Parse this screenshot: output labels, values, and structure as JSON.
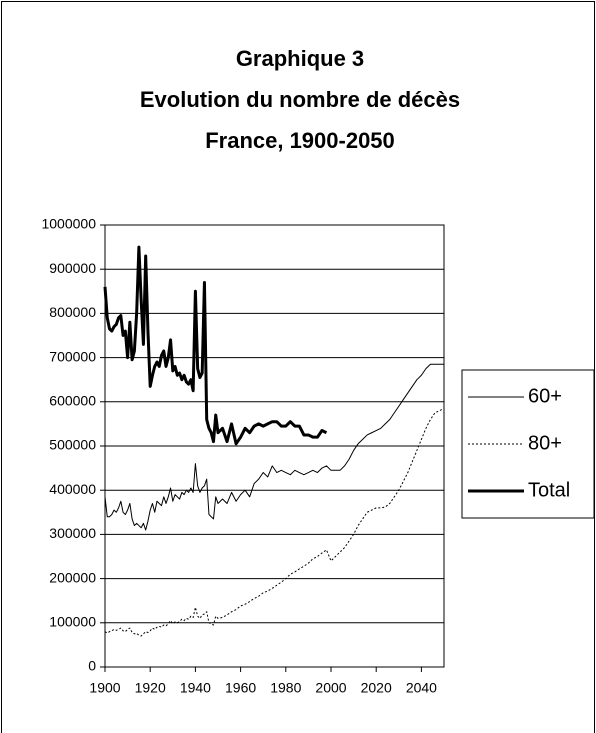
{
  "chart_data": {
    "type": "line",
    "title": [
      "Graphique 3",
      "Evolution du nombre de décès",
      "France, 1900-2050"
    ],
    "x": [
      1900,
      1901,
      1902,
      1903,
      1904,
      1905,
      1906,
      1907,
      1908,
      1909,
      1910,
      1911,
      1912,
      1913,
      1914,
      1915,
      1916,
      1917,
      1918,
      1919,
      1920,
      1921,
      1922,
      1923,
      1924,
      1925,
      1926,
      1927,
      1928,
      1929,
      1930,
      1931,
      1932,
      1933,
      1934,
      1935,
      1936,
      1937,
      1938,
      1939,
      1940,
      1941,
      1942,
      1943,
      1944,
      1945,
      1946,
      1947,
      1948,
      1949,
      1950,
      1952,
      1954,
      1956,
      1958,
      1960,
      1962,
      1964,
      1966,
      1968,
      1970,
      1972,
      1974,
      1976,
      1978,
      1980,
      1982,
      1984,
      1986,
      1988,
      1990,
      1992,
      1994,
      1996,
      1998,
      2000,
      2002,
      2004,
      2006,
      2008,
      2010,
      2012,
      2014,
      2016,
      2018,
      2020,
      2022,
      2024,
      2026,
      2028,
      2030,
      2032,
      2034,
      2036,
      2038,
      2040,
      2042,
      2044,
      2046,
      2048,
      2050
    ],
    "series": [
      {
        "name": "60+",
        "color": "#000000",
        "line_style": "solid",
        "line_width": 1,
        "values": [
          385000,
          340000,
          340000,
          345000,
          355000,
          350000,
          360000,
          375000,
          350000,
          345000,
          355000,
          370000,
          335000,
          320000,
          325000,
          320000,
          315000,
          325000,
          310000,
          330000,
          355000,
          370000,
          350000,
          375000,
          370000,
          365000,
          385000,
          370000,
          385000,
          405000,
          375000,
          390000,
          385000,
          380000,
          395000,
          390000,
          400000,
          395000,
          405000,
          395000,
          460000,
          410000,
          395000,
          405000,
          410000,
          425000,
          345000,
          340000,
          335000,
          385000,
          370000,
          380000,
          370000,
          395000,
          375000,
          390000,
          400000,
          385000,
          415000,
          425000,
          440000,
          430000,
          455000,
          440000,
          445000,
          440000,
          435000,
          445000,
          440000,
          435000,
          440000,
          445000,
          440000,
          450000,
          455000,
          445000,
          445000,
          445000,
          455000,
          470000,
          490000,
          505000,
          515000,
          525000,
          530000,
          535000,
          540000,
          550000,
          560000,
          575000,
          590000,
          605000,
          620000,
          635000,
          650000,
          660000,
          675000,
          685000,
          685000,
          685000,
          685000
        ]
      },
      {
        "name": "80+",
        "color": "#000000",
        "line_style": "dotted",
        "line_width": 1,
        "values": [
          80000,
          77000,
          80000,
          82000,
          85000,
          83000,
          85000,
          88000,
          82000,
          80000,
          85000,
          88000,
          78000,
          75000,
          76000,
          72000,
          70000,
          75000,
          80000,
          78000,
          82000,
          88000,
          85000,
          90000,
          92000,
          90000,
          95000,
          93000,
          98000,
          105000,
          98000,
          102000,
          100000,
          103000,
          108000,
          105000,
          110000,
          108000,
          115000,
          112000,
          135000,
          115000,
          110000,
          118000,
          120000,
          125000,
          100000,
          98000,
          95000,
          115000,
          110000,
          112000,
          118000,
          125000,
          130000,
          138000,
          142000,
          148000,
          155000,
          160000,
          168000,
          172000,
          178000,
          185000,
          192000,
          200000,
          210000,
          215000,
          222000,
          228000,
          235000,
          245000,
          250000,
          258000,
          265000,
          240000,
          250000,
          260000,
          270000,
          285000,
          300000,
          320000,
          335000,
          350000,
          355000,
          360000,
          360000,
          362000,
          370000,
          385000,
          400000,
          420000,
          440000,
          465000,
          490000,
          515000,
          540000,
          560000,
          575000,
          580000,
          585000
        ]
      },
      {
        "name": "Total",
        "color": "#000000",
        "line_style": "solid",
        "line_width": 3,
        "values": [
          860000,
          790000,
          765000,
          760000,
          770000,
          775000,
          790000,
          795000,
          750000,
          760000,
          700000,
          780000,
          695000,
          715000,
          800000,
          950000,
          830000,
          730000,
          930000,
          760000,
          635000,
          660000,
          680000,
          690000,
          680000,
          705000,
          715000,
          680000,
          700000,
          740000,
          670000,
          680000,
          660000,
          665000,
          650000,
          660000,
          645000,
          640000,
          650000,
          625000,
          850000,
          675000,
          655000,
          665000,
          870000,
          560000,
          540000,
          530000,
          510000,
          570000,
          530000,
          540000,
          510000,
          550000,
          505000,
          520000,
          540000,
          530000,
          545000,
          550000,
          545000,
          550000,
          555000,
          555000,
          545000,
          545000,
          555000,
          545000,
          545000,
          525000,
          525000,
          520000,
          520000,
          535000,
          530000,
          null,
          null,
          null,
          null,
          null,
          null,
          null,
          null,
          null,
          null,
          null,
          null,
          null,
          null,
          null,
          null,
          null,
          null,
          null,
          null,
          null,
          null,
          null,
          null,
          null,
          null
        ]
      }
    ],
    "xlim": [
      1900,
      2050
    ],
    "xticks": [
      1900,
      1920,
      1940,
      1960,
      1980,
      2000,
      2020,
      2040
    ],
    "ylim": [
      0,
      1000000
    ],
    "yticks": [
      0,
      100000,
      200000,
      300000,
      400000,
      500000,
      600000,
      700000,
      800000,
      900000,
      1000000
    ],
    "grid": true,
    "legend": "right"
  }
}
